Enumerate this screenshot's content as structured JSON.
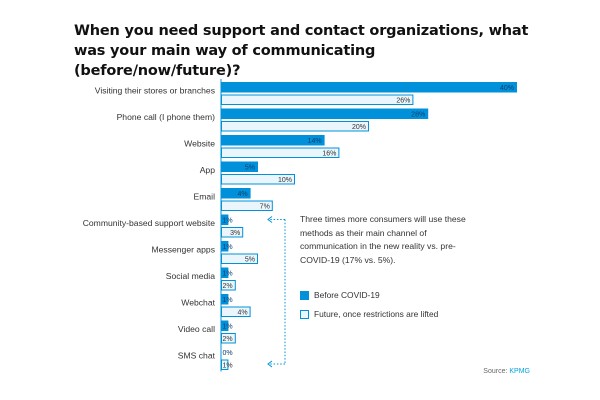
{
  "chart_data": {
    "type": "bar",
    "orientation": "horizontal",
    "title": "When you need support and contact organizations, what was your main way of communicating (before/now/future)?",
    "categories": [
      "Visiting their stores or branches",
      "Phone call (I phone them)",
      "Website",
      "App",
      "Email",
      "Community-based support website",
      "Messenger apps",
      "Social media",
      "Webchat",
      "Video call",
      "SMS chat"
    ],
    "series": [
      {
        "name": "Before COVID-19",
        "values": [
          40,
          28,
          14,
          5,
          4,
          1,
          1,
          1,
          1,
          1,
          0
        ],
        "labels": [
          "40%",
          "28%",
          "14%",
          "5%",
          "4%",
          "1%",
          "1%",
          "1%",
          "1%",
          "1%",
          "0%"
        ],
        "color": "#0091da",
        "style": "filled"
      },
      {
        "name": "Future, once restrictions are lifted",
        "values": [
          26,
          20,
          16,
          10,
          7,
          3,
          5,
          2,
          4,
          2,
          1
        ],
        "labels": [
          "26%",
          "20%",
          "16%",
          "10%",
          "7%",
          "3%",
          "5%",
          "2%",
          "4%",
          "2%",
          "1%"
        ],
        "color": "#0091da",
        "style": "outline"
      }
    ],
    "xlim": [
      0,
      40
    ],
    "grid": false,
    "legend": "bottom-right"
  },
  "annotation": "Three times more consumers will use these methods as their main channel of communication in the new reality vs. pre-COVID-19 (17% vs. 5%).",
  "source": {
    "prefix": "Source: ",
    "name": "KPMG"
  },
  "colors": {
    "filled": "#0091da",
    "outline": "#0091da",
    "outline_fill": "#eaf6fc",
    "bracket": "#0091da"
  }
}
